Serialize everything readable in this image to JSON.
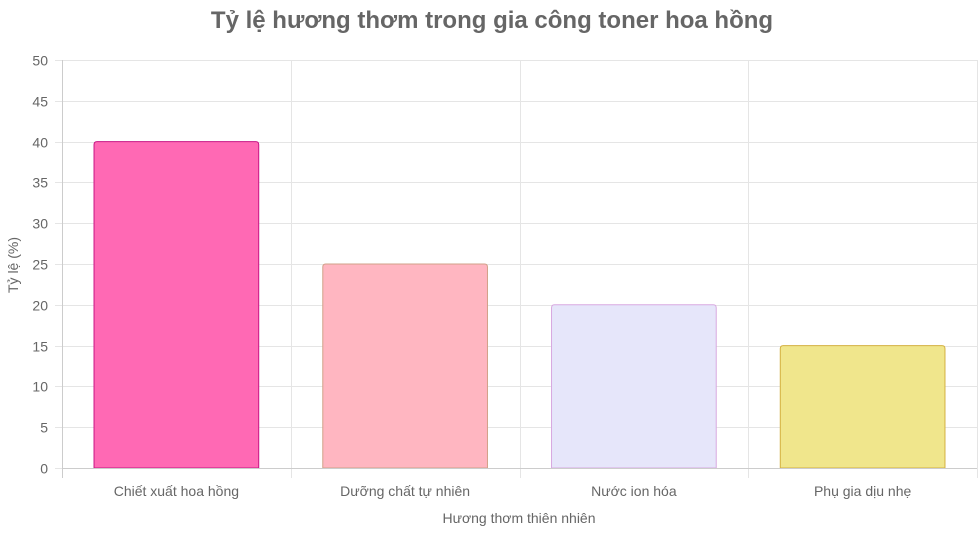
{
  "chart_data": {
    "type": "bar",
    "title": "Tỷ lệ hương thơm trong gia công toner hoa hồng",
    "xlabel": "Hương thơm thiên nhiên",
    "ylabel": "Tỷ lệ (%)",
    "categories": [
      "Chiết xuất hoa hồng",
      "Dưỡng chất tự nhiên",
      "Nước ion hóa",
      "Phụ gia dịu nhẹ"
    ],
    "values": [
      40,
      25,
      20,
      15
    ],
    "ylim": [
      0,
      50
    ],
    "yticks": [
      0,
      5,
      10,
      15,
      20,
      25,
      30,
      35,
      40,
      45,
      50
    ],
    "grid": true,
    "legend": "none",
    "colors": {
      "fill": [
        "#ff69b4",
        "#ffb6c1",
        "#e6e6fa",
        "#f0e68c"
      ],
      "border": [
        "#c71585",
        "#d2a088",
        "#d8a8e0",
        "#d4b040"
      ]
    }
  }
}
